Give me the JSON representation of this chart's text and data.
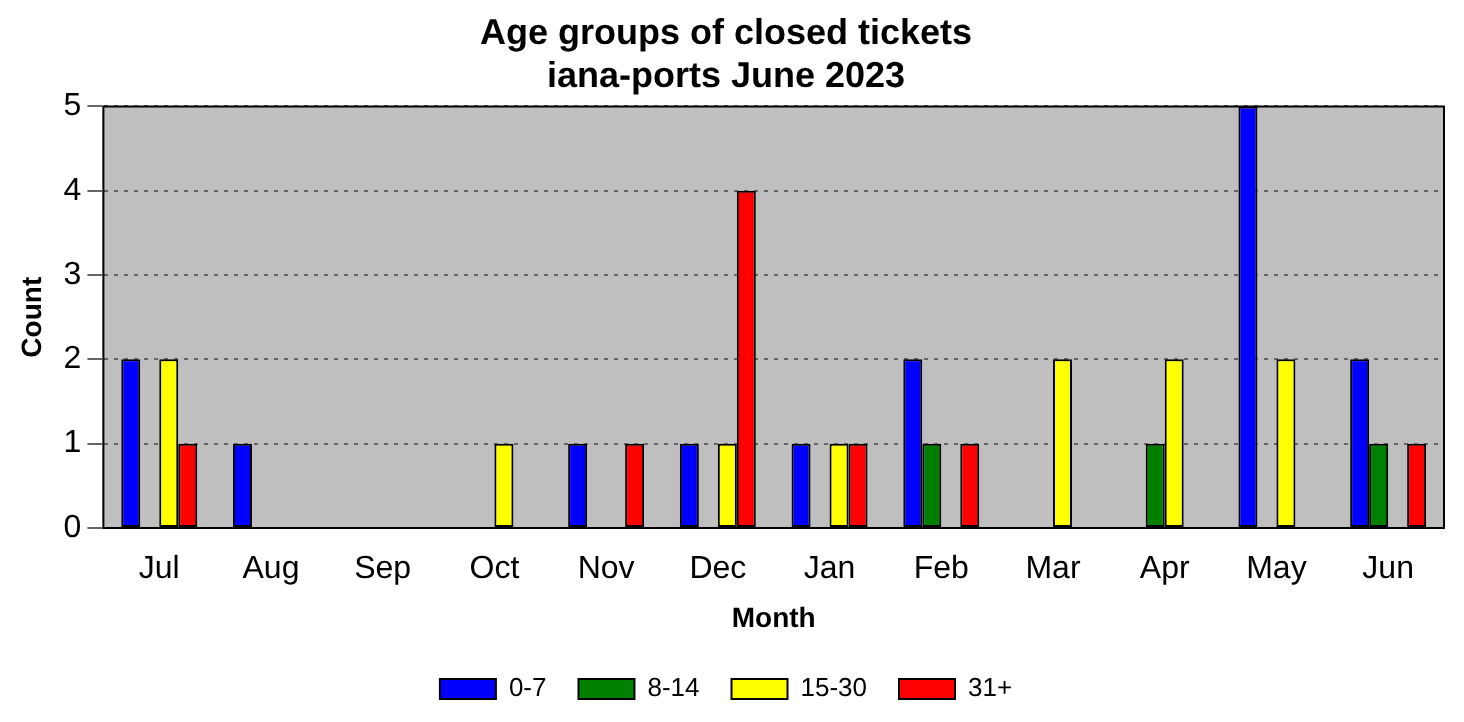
{
  "chart_data": {
    "type": "bar",
    "title": "Age groups of closed tickets",
    "subtitle": "iana-ports June 2023",
    "xlabel": "Month",
    "ylabel": "Count",
    "categories": [
      "Jul",
      "Aug",
      "Sep",
      "Oct",
      "Nov",
      "Dec",
      "Jan",
      "Feb",
      "Mar",
      "Apr",
      "May",
      "Jun"
    ],
    "series": [
      {
        "name": "0-7",
        "color": "#0000ff",
        "values": [
          2,
          1,
          0,
          0,
          1,
          1,
          1,
          2,
          0,
          0,
          5,
          2
        ]
      },
      {
        "name": "8-14",
        "color": "#008000",
        "values": [
          0,
          0,
          0,
          0,
          0,
          0,
          0,
          1,
          0,
          1,
          0,
          1
        ]
      },
      {
        "name": "15-30",
        "color": "#ffff00",
        "values": [
          2,
          0,
          0,
          1,
          0,
          1,
          1,
          0,
          2,
          2,
          2,
          0
        ]
      },
      {
        "name": "31+",
        "color": "#ff0000",
        "values": [
          1,
          0,
          0,
          0,
          1,
          4,
          1,
          1,
          0,
          0,
          0,
          1
        ]
      }
    ],
    "ylim": [
      0,
      5
    ],
    "yticks": [
      0,
      1,
      2,
      3,
      4,
      5
    ],
    "grid": "y",
    "legend": "bottom"
  }
}
